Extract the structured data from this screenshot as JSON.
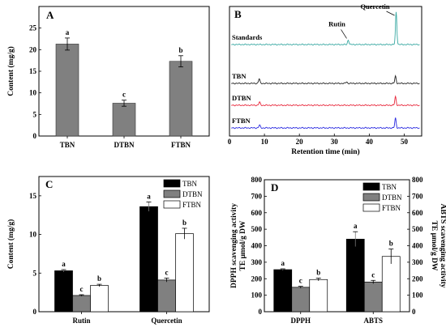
{
  "chart_data": [
    {
      "panel": "A",
      "type": "bar",
      "categories": [
        "TBN",
        "DTBN",
        "FTBN"
      ],
      "values": [
        21.3,
        7.6,
        17.3
      ],
      "errors": [
        1.4,
        0.7,
        1.3
      ],
      "significance": [
        "a",
        "c",
        "b"
      ],
      "ylabel": "Content (mg/g)",
      "ylim": [
        0,
        30
      ],
      "yticks": [
        0,
        5,
        10,
        15,
        20,
        25
      ],
      "bar_color": "#808080"
    },
    {
      "panel": "B",
      "type": "line",
      "xlabel": "Retention time (min)",
      "xlim": [
        0,
        55
      ],
      "xticks": [
        0,
        10,
        20,
        30,
        40,
        50
      ],
      "series": [
        {
          "name": "Standards",
          "color": "#3aa9a3",
          "peaks": [
            {
              "x": 34.0,
              "h": 0.35
            },
            {
              "x": 47.7,
              "h": 2.5
            }
          ]
        },
        {
          "name": "TBN",
          "color": "#222222",
          "peaks": [
            {
              "x": 8.5,
              "h": 0.35
            },
            {
              "x": 33.5,
              "h": 0.12
            },
            {
              "x": 47.5,
              "h": 0.55
            }
          ]
        },
        {
          "name": "DTBN",
          "color": "#e8283c",
          "peaks": [
            {
              "x": 8.6,
              "h": 0.25
            },
            {
              "x": 47.5,
              "h": 0.65
            }
          ]
        },
        {
          "name": "FTBN",
          "color": "#2a2ae0",
          "peaks": [
            {
              "x": 8.6,
              "h": 0.22
            },
            {
              "x": 47.5,
              "h": 0.75
            }
          ]
        }
      ],
      "annotations": [
        "Rutin",
        "Quercetin"
      ]
    },
    {
      "panel": "C",
      "type": "bar",
      "categories": [
        "Rutin",
        "Quercetin"
      ],
      "series": [
        {
          "name": "TBN",
          "color": "#000000",
          "values": [
            5.3,
            13.6
          ],
          "errors": [
            0.15,
            0.6
          ],
          "significance": [
            "a",
            "a"
          ]
        },
        {
          "name": "DTBN",
          "color": "#808080",
          "values": [
            2.1,
            4.1
          ],
          "errors": [
            0.1,
            0.25
          ],
          "significance": [
            "c",
            "c"
          ]
        },
        {
          "name": "FTBN",
          "color": "#ffffff",
          "values": [
            3.4,
            10.1
          ],
          "errors": [
            0.15,
            0.7
          ],
          "significance": [
            "b",
            "b"
          ]
        }
      ],
      "ylabel": "Content (mg/g)",
      "ylim": [
        0,
        17.5
      ],
      "yticks": [
        0,
        5,
        10,
        15
      ]
    },
    {
      "panel": "D",
      "type": "bar",
      "categories": [
        "DPPH",
        "ABTS"
      ],
      "series": [
        {
          "name": "TBN",
          "color": "#000000",
          "values": [
            255,
            440
          ],
          "errors": [
            5,
            45
          ],
          "significance": [
            "a",
            "a"
          ]
        },
        {
          "name": "DTBN",
          "color": "#808080",
          "values": [
            148,
            180
          ],
          "errors": [
            6,
            10
          ],
          "significance": [
            "c",
            "c"
          ]
        },
        {
          "name": "FTBN",
          "color": "#ffffff",
          "values": [
            195,
            335
          ],
          "errors": [
            8,
            45
          ],
          "significance": [
            "b",
            "b"
          ]
        }
      ],
      "ylabel": "DPPH scavenging activity\nTE μmol/g DW",
      "ylabel_right": "ABTS scavenging activity\nTE μmol/g DW",
      "ylim": [
        0,
        800
      ],
      "yticks": [
        0,
        100,
        200,
        300,
        400,
        500,
        600,
        700,
        800
      ]
    }
  ]
}
